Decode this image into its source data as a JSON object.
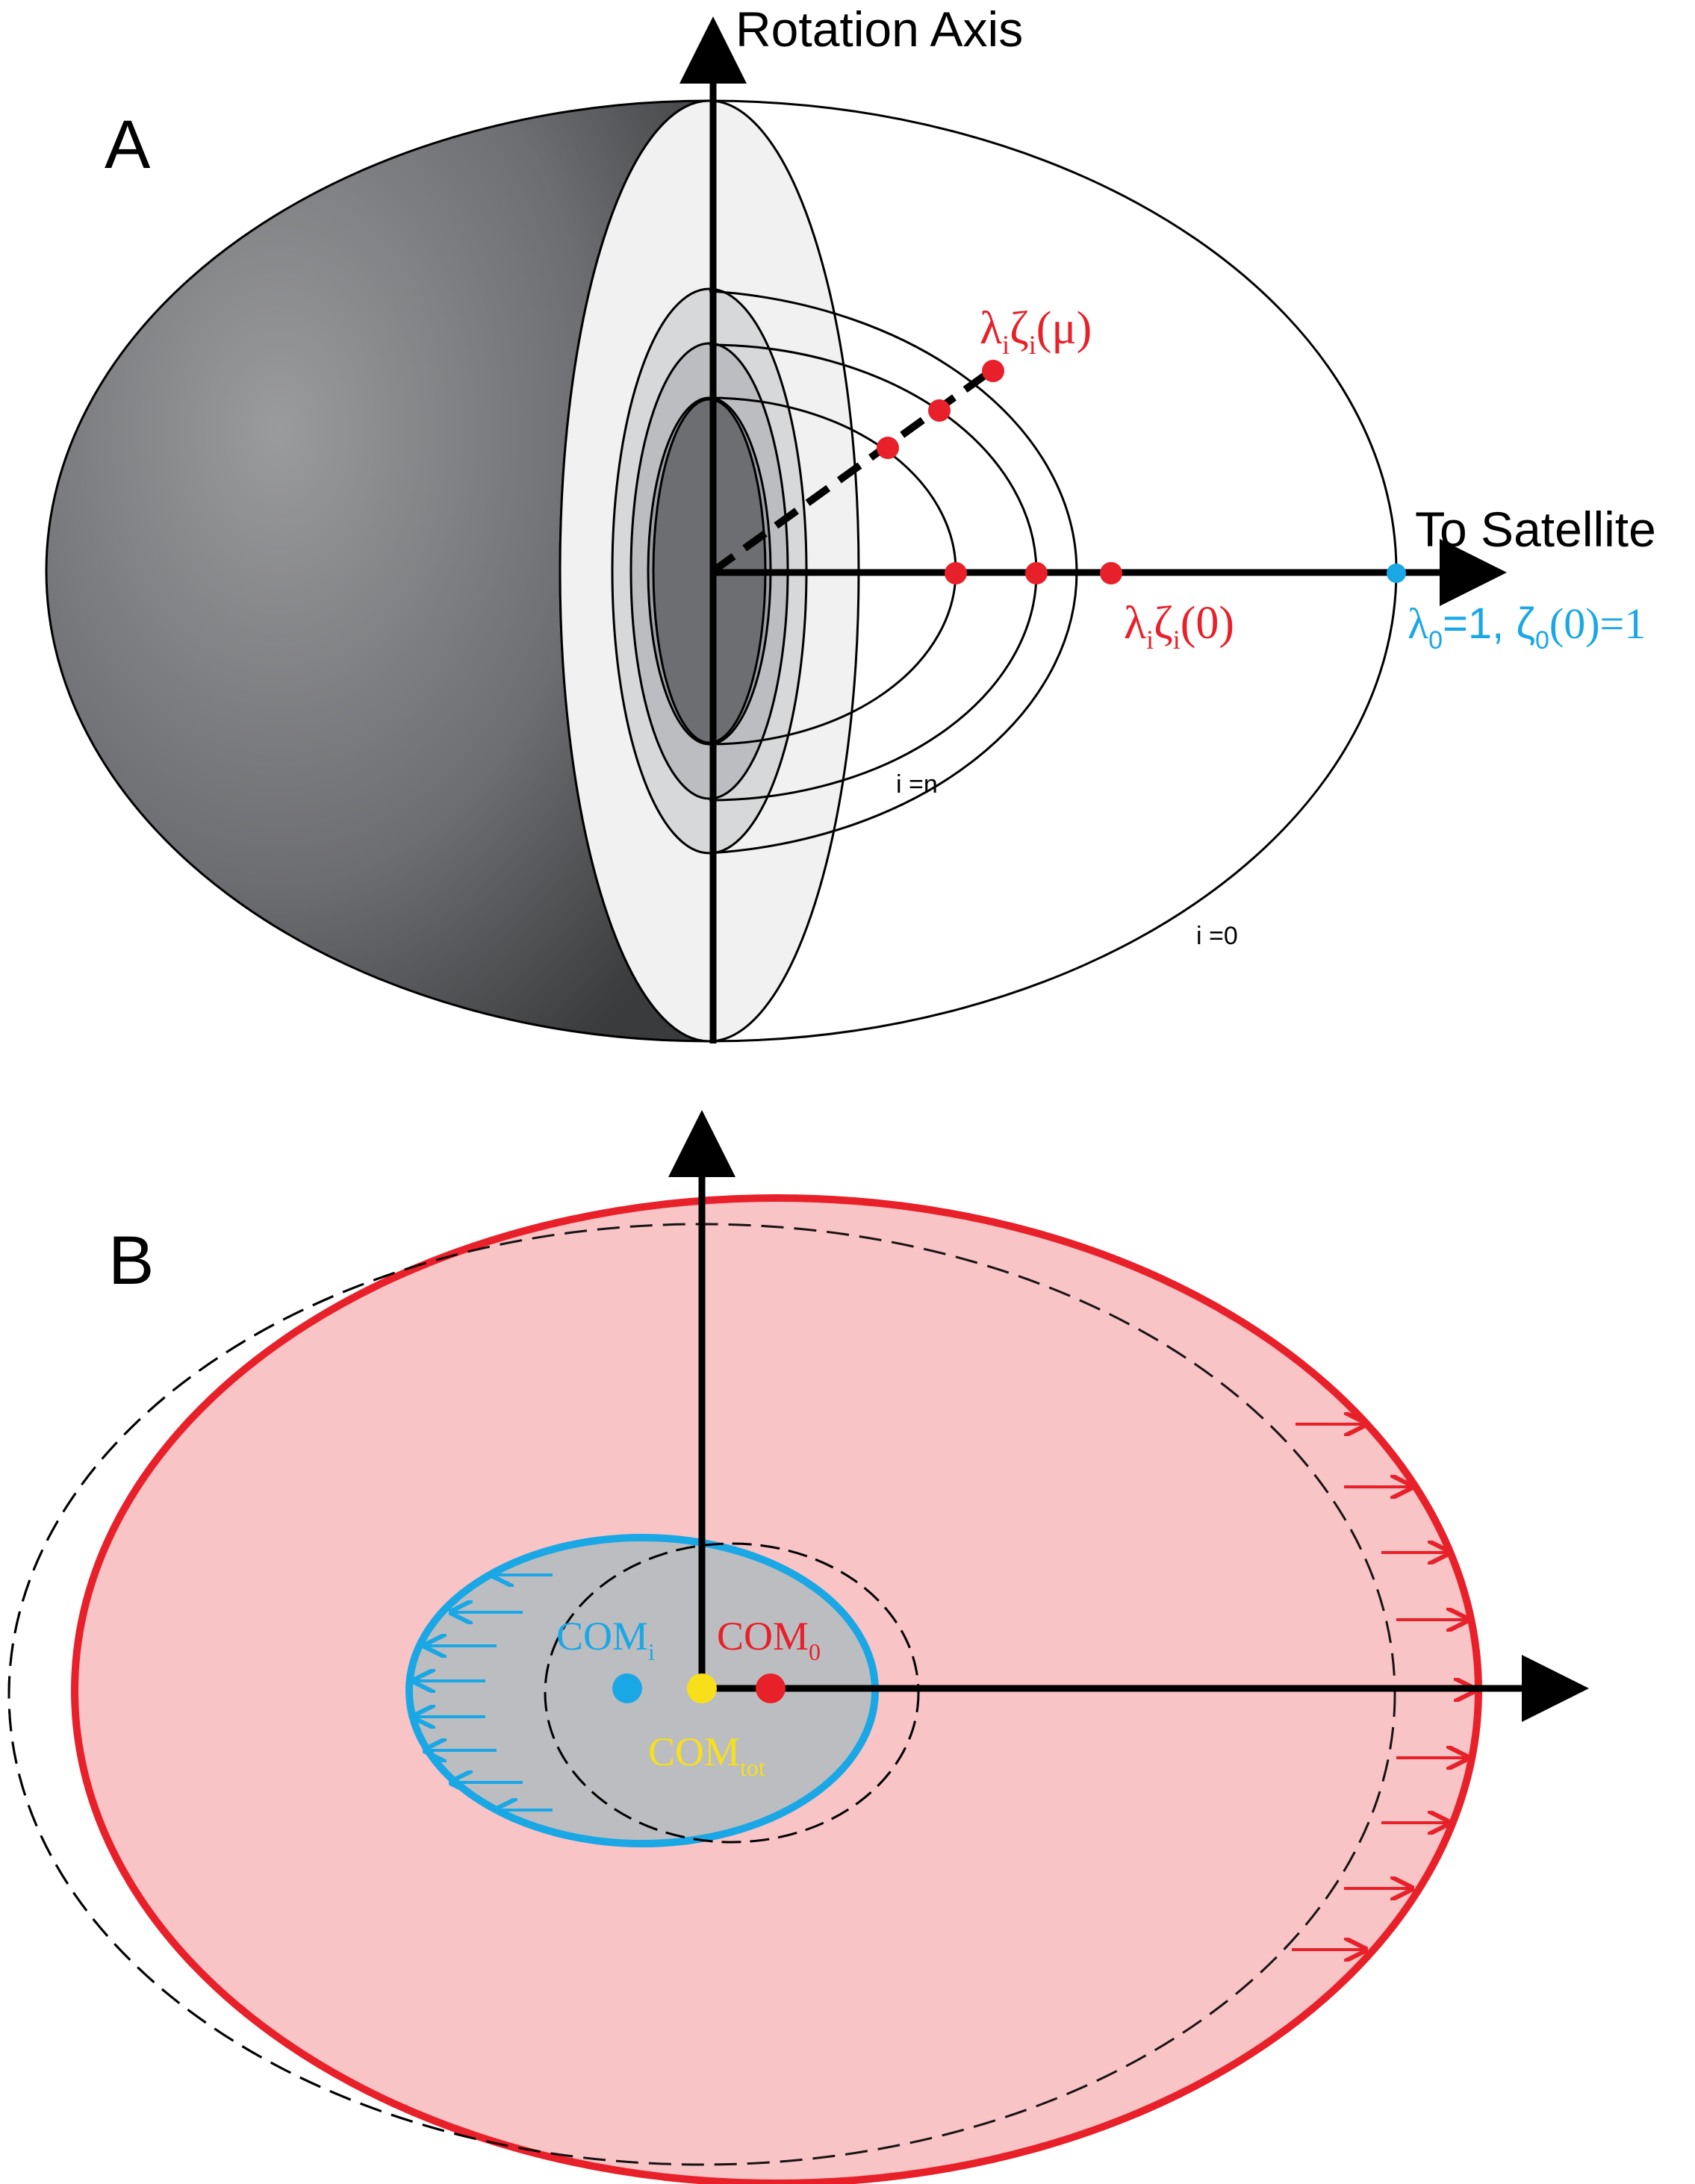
{
  "panel_a": {
    "letter": "A",
    "axis_label": "Rotation Axis",
    "satellite_label": "To Satellite",
    "label_lambda_mu": {
      "base1": "λ",
      "sub1": "i",
      "base2": "ζ",
      "sub2": "i",
      "tail": "(μ)"
    },
    "label_lambda_zero": {
      "base1": "λ",
      "sub1": "i",
      "base2": "ζ",
      "sub2": "i",
      "tail": "(0)"
    },
    "label_outer": {
      "part1": "λ",
      "sub1": "0",
      "part2": "=1, ζ",
      "sub2": "0",
      "part3": "(0)=1"
    },
    "label_i_n": "i =n",
    "label_i_0": "i =0"
  },
  "panel_b": {
    "letter": "B",
    "com_i": {
      "base": "COM",
      "sub": "i"
    },
    "com_0": {
      "base": "COM",
      "sub": "0"
    },
    "com_tot": {
      "base": "COM",
      "sub": "tot"
    }
  },
  "colors": {
    "red": "#e8202a",
    "blue": "#1aa7e6",
    "yellow": "#f7e01a",
    "pink_fill": "#f8c4c5",
    "gray_fill": "#bcbdc0",
    "black": "#000000"
  }
}
